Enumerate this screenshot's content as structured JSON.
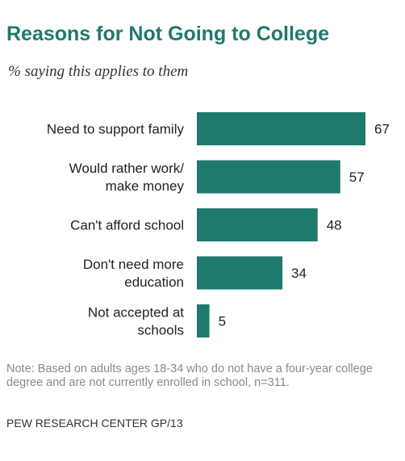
{
  "chart_data": {
    "type": "bar",
    "orientation": "horizontal",
    "title": "Reasons for Not Going to College",
    "subtitle": "% saying this applies to them",
    "categories": [
      [
        "Need to support family"
      ],
      [
        "Would rather work/",
        "make money"
      ],
      [
        "Can't afford school"
      ],
      [
        "Don't need more",
        "education"
      ],
      [
        "Not accepted at",
        "schools"
      ]
    ],
    "values": [
      67,
      57,
      48,
      34,
      5
    ],
    "bar_color": "#1e7a6d",
    "xlim": [
      0,
      67
    ],
    "grid": false,
    "legend": "none"
  },
  "note": "Note: Based on adults ages 18-34 who do not have a four-year college degree and are not currently enrolled in school, n=311.",
  "source": "PEW RESEARCH CENTER GP/13"
}
